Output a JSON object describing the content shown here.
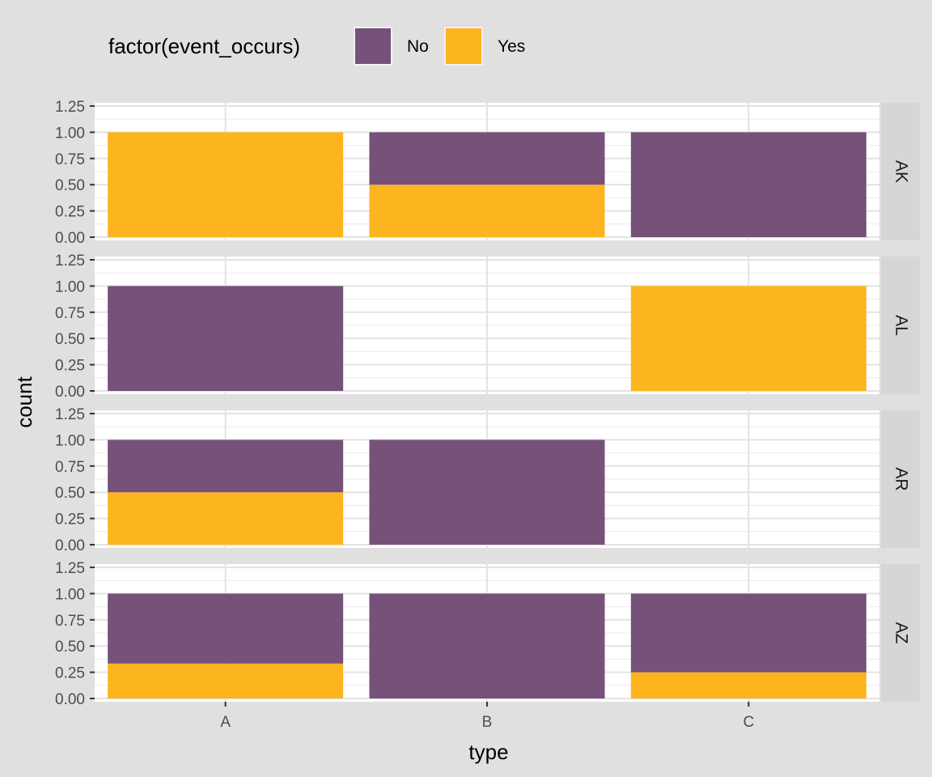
{
  "chart_data": {
    "type": "bar",
    "stacked": true,
    "facet_by": "row",
    "xlabel": "type",
    "ylabel": "count",
    "categories": [
      "A",
      "B",
      "C"
    ],
    "ylim": [
      0,
      1.25
    ],
    "yticks": [
      "0.00",
      "0.25",
      "0.50",
      "0.75",
      "1.00",
      "1.25"
    ],
    "legend": {
      "title": "factor(event_occurs)",
      "position": "top",
      "entries": [
        {
          "name": "No",
          "color": "#765179"
        },
        {
          "name": "Yes",
          "color": "#fcb51f"
        }
      ]
    },
    "facets": [
      {
        "label": "AK",
        "series": [
          {
            "name": "No",
            "values": [
              0,
              0.5,
              1
            ]
          },
          {
            "name": "Yes",
            "values": [
              1,
              0.5,
              0
            ]
          }
        ]
      },
      {
        "label": "AL",
        "series": [
          {
            "name": "No",
            "values": [
              1,
              0,
              0
            ]
          },
          {
            "name": "Yes",
            "values": [
              0,
              0,
              1
            ]
          }
        ]
      },
      {
        "label": "AR",
        "series": [
          {
            "name": "No",
            "values": [
              0.5,
              1,
              0
            ]
          },
          {
            "name": "Yes",
            "values": [
              0.5,
              0,
              0
            ]
          }
        ]
      },
      {
        "label": "AZ",
        "series": [
          {
            "name": "No",
            "values": [
              0.667,
              1,
              0.75
            ]
          },
          {
            "name": "Yes",
            "values": [
              0.333,
              0,
              0.25
            ]
          }
        ]
      }
    ]
  }
}
